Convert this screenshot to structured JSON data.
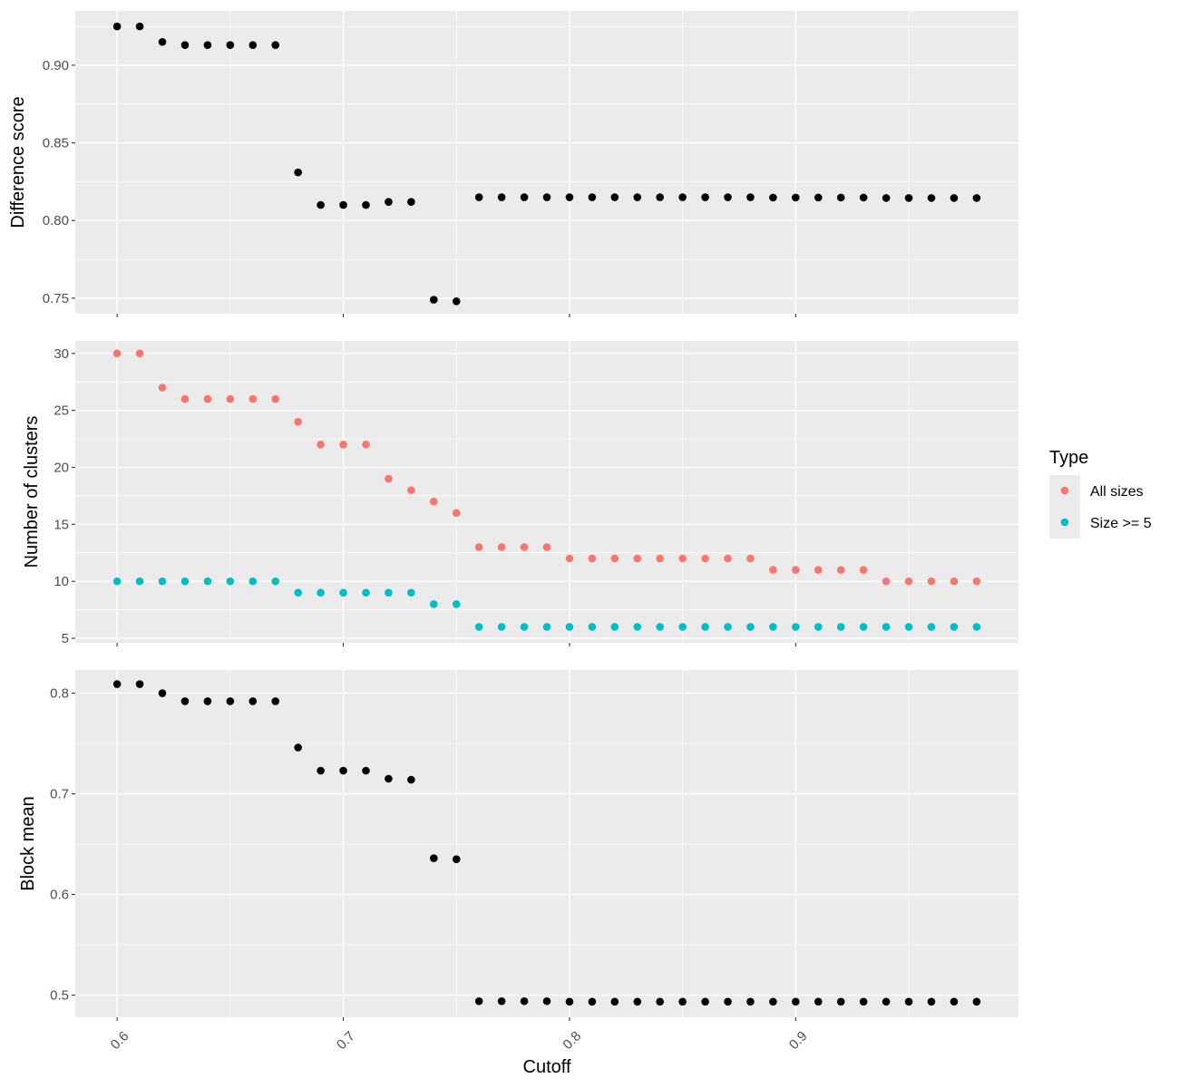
{
  "chart_data": [
    {
      "type": "scatter",
      "ylabel": "Difference score",
      "ylim": [
        0.74,
        0.935
      ],
      "yticks": [
        "0.75",
        "0.80",
        "0.85",
        "0.90"
      ],
      "grid": true,
      "series": [
        {
          "x": [
            0.6,
            0.61,
            0.62,
            0.63,
            0.64,
            0.65,
            0.66,
            0.67,
            0.68,
            0.69,
            0.7,
            0.71,
            0.72,
            0.73,
            0.74,
            0.75,
            0.76,
            0.77,
            0.78,
            0.79,
            0.8,
            0.81,
            0.82,
            0.83,
            0.84,
            0.85,
            0.86,
            0.87,
            0.88,
            0.89,
            0.9,
            0.91,
            0.92,
            0.93,
            0.94,
            0.95,
            0.96,
            0.97,
            0.98
          ],
          "values": [
            0.925,
            0.925,
            0.915,
            0.913,
            0.913,
            0.913,
            0.913,
            0.913,
            0.831,
            0.81,
            0.81,
            0.81,
            0.812,
            0.812,
            0.749,
            0.748,
            0.815,
            0.815,
            0.815,
            0.815,
            0.815,
            0.815,
            0.815,
            0.815,
            0.815,
            0.815,
            0.815,
            0.815,
            0.815,
            0.8148,
            0.8148,
            0.8148,
            0.8148,
            0.8148,
            0.8145,
            0.8145,
            0.8145,
            0.8145,
            0.8145
          ],
          "color": "#000000"
        }
      ]
    },
    {
      "type": "scatter",
      "ylabel": "Number of clusters",
      "ylim": [
        4.6,
        31.1
      ],
      "yticks": [
        "5",
        "10",
        "15",
        "20",
        "25",
        "30"
      ],
      "grid": true,
      "series": [
        {
          "name": "All sizes",
          "color": "#F8766D",
          "x": [
            0.6,
            0.61,
            0.62,
            0.63,
            0.64,
            0.65,
            0.66,
            0.67,
            0.68,
            0.69,
            0.7,
            0.71,
            0.72,
            0.73,
            0.74,
            0.75,
            0.76,
            0.77,
            0.78,
            0.79,
            0.8,
            0.81,
            0.82,
            0.83,
            0.84,
            0.85,
            0.86,
            0.87,
            0.88,
            0.89,
            0.9,
            0.91,
            0.92,
            0.93,
            0.94,
            0.95,
            0.96,
            0.97,
            0.98
          ],
          "values": [
            30,
            30,
            27,
            26,
            26,
            26,
            26,
            26,
            24,
            22,
            22,
            22,
            19,
            18,
            17,
            16,
            13,
            13,
            13,
            13,
            12,
            12,
            12,
            12,
            12,
            12,
            12,
            12,
            12,
            11,
            11,
            11,
            11,
            11,
            10,
            10,
            10,
            10,
            10
          ]
        },
        {
          "name": "Size >= 5",
          "color": "#00BFC4",
          "x": [
            0.6,
            0.61,
            0.62,
            0.63,
            0.64,
            0.65,
            0.66,
            0.67,
            0.68,
            0.69,
            0.7,
            0.71,
            0.72,
            0.73,
            0.74,
            0.75,
            0.76,
            0.77,
            0.78,
            0.79,
            0.8,
            0.81,
            0.82,
            0.83,
            0.84,
            0.85,
            0.86,
            0.87,
            0.88,
            0.89,
            0.9,
            0.91,
            0.92,
            0.93,
            0.94,
            0.95,
            0.96,
            0.97,
            0.98
          ],
          "values": [
            10,
            10,
            10,
            10,
            10,
            10,
            10,
            10,
            9,
            9,
            9,
            9,
            9,
            9,
            8,
            8,
            6,
            6,
            6,
            6,
            6,
            6,
            6,
            6,
            6,
            6,
            6,
            6,
            6,
            6,
            6,
            6,
            6,
            6,
            6,
            6,
            6,
            6,
            6
          ]
        }
      ]
    },
    {
      "type": "scatter",
      "ylabel": "Block mean",
      "xlabel": "Cutoff",
      "ylim": [
        0.478,
        0.823
      ],
      "yticks": [
        "0.5",
        "0.6",
        "0.7",
        "0.8"
      ],
      "xticks": [
        "0.6",
        "0.7",
        "0.8",
        "0.9"
      ],
      "grid": true,
      "series": [
        {
          "x": [
            0.6,
            0.61,
            0.62,
            0.63,
            0.64,
            0.65,
            0.66,
            0.67,
            0.68,
            0.69,
            0.7,
            0.71,
            0.72,
            0.73,
            0.74,
            0.75,
            0.76,
            0.77,
            0.78,
            0.79,
            0.8,
            0.81,
            0.82,
            0.83,
            0.84,
            0.85,
            0.86,
            0.87,
            0.88,
            0.89,
            0.9,
            0.91,
            0.92,
            0.93,
            0.94,
            0.95,
            0.96,
            0.97,
            0.98
          ],
          "values": [
            0.809,
            0.809,
            0.8,
            0.792,
            0.792,
            0.792,
            0.792,
            0.792,
            0.746,
            0.723,
            0.723,
            0.723,
            0.715,
            0.714,
            0.636,
            0.635,
            0.494,
            0.494,
            0.494,
            0.494,
            0.4935,
            0.4935,
            0.4935,
            0.4935,
            0.4935,
            0.4935,
            0.4935,
            0.4935,
            0.4935,
            0.4935,
            0.4935,
            0.4935,
            0.4935,
            0.4935,
            0.4935,
            0.4935,
            0.4935,
            0.4935,
            0.4935
          ],
          "color": "#000000"
        }
      ]
    }
  ],
  "x_axis": {
    "xlim": [
      0.5815,
      0.9985
    ],
    "ticks": [
      0.6,
      0.7,
      0.8,
      0.9
    ],
    "tick_labels": [
      "0.6",
      "0.7",
      "0.8",
      "0.9"
    ],
    "title": "Cutoff"
  },
  "legend": {
    "title": "Type",
    "placement": "right",
    "items": [
      {
        "label": "All sizes",
        "color": "#F8766D"
      },
      {
        "label": "Size >= 5",
        "color": "#00BFC4"
      }
    ]
  }
}
